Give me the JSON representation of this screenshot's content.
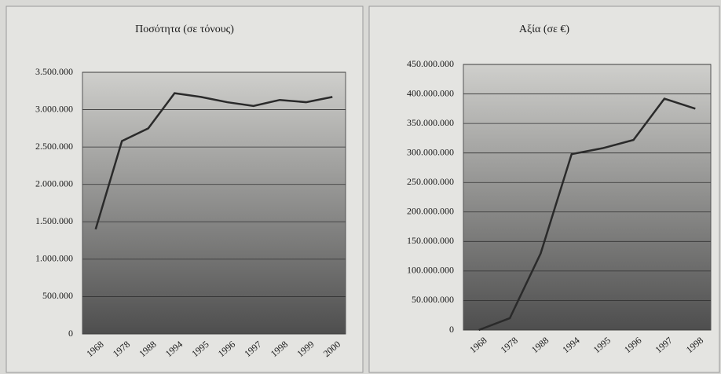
{
  "chart_data": [
    {
      "type": "line",
      "title": "Ποσότητα (σε τόνους)",
      "categories": [
        "1968",
        "1978",
        "1988",
        "1994",
        "1995",
        "1996",
        "1997",
        "1998",
        "1999",
        "2000"
      ],
      "values": [
        1400000,
        2580000,
        2750000,
        3220000,
        3170000,
        3100000,
        3050000,
        3130000,
        3100000,
        3170000
      ],
      "color": "#2a2a2a",
      "grid": true,
      "ylim": [
        0,
        3500000
      ],
      "yticks": [
        0,
        {
          "value": 500000,
          "label": "500.000"
        },
        {
          "value": 1000000,
          "label": "1.000.000"
        },
        {
          "value": 1500000,
          "label": "1.500.000"
        },
        {
          "value": 2000000,
          "label": "2.000.000"
        },
        {
          "value": 2500000,
          "label": "2.500.000"
        },
        {
          "value": 3000000,
          "label": "3.000.000"
        },
        {
          "value": 3500000,
          "label": "3.500.000"
        }
      ]
    },
    {
      "type": "line",
      "title": "Αξία (σε €)",
      "categories": [
        "1968",
        "1978",
        "1988",
        "1994",
        "1995",
        "1996",
        "1997",
        "1998"
      ],
      "values": [
        0,
        20000000,
        130000000,
        298000000,
        308000000,
        322000000,
        392000000,
        375000000
      ],
      "color": "#2a2a2a",
      "grid": true,
      "ylim": [
        0,
        450000000
      ],
      "yticks": [
        0,
        {
          "value": 50000000,
          "label": "50.000.000"
        },
        {
          "value": 100000000,
          "label": "100.000.000"
        },
        {
          "value": 150000000,
          "label": "150.000.000"
        },
        {
          "value": 200000000,
          "label": "200.000.000"
        },
        {
          "value": 250000000,
          "label": "250.000.000"
        },
        {
          "value": 300000000,
          "label": "300.000.000"
        },
        {
          "value": 350000000,
          "label": "350.000.000"
        },
        {
          "value": 400000000,
          "label": "400.000.000"
        },
        {
          "value": 450000000,
          "label": "450.000.000"
        }
      ]
    }
  ]
}
